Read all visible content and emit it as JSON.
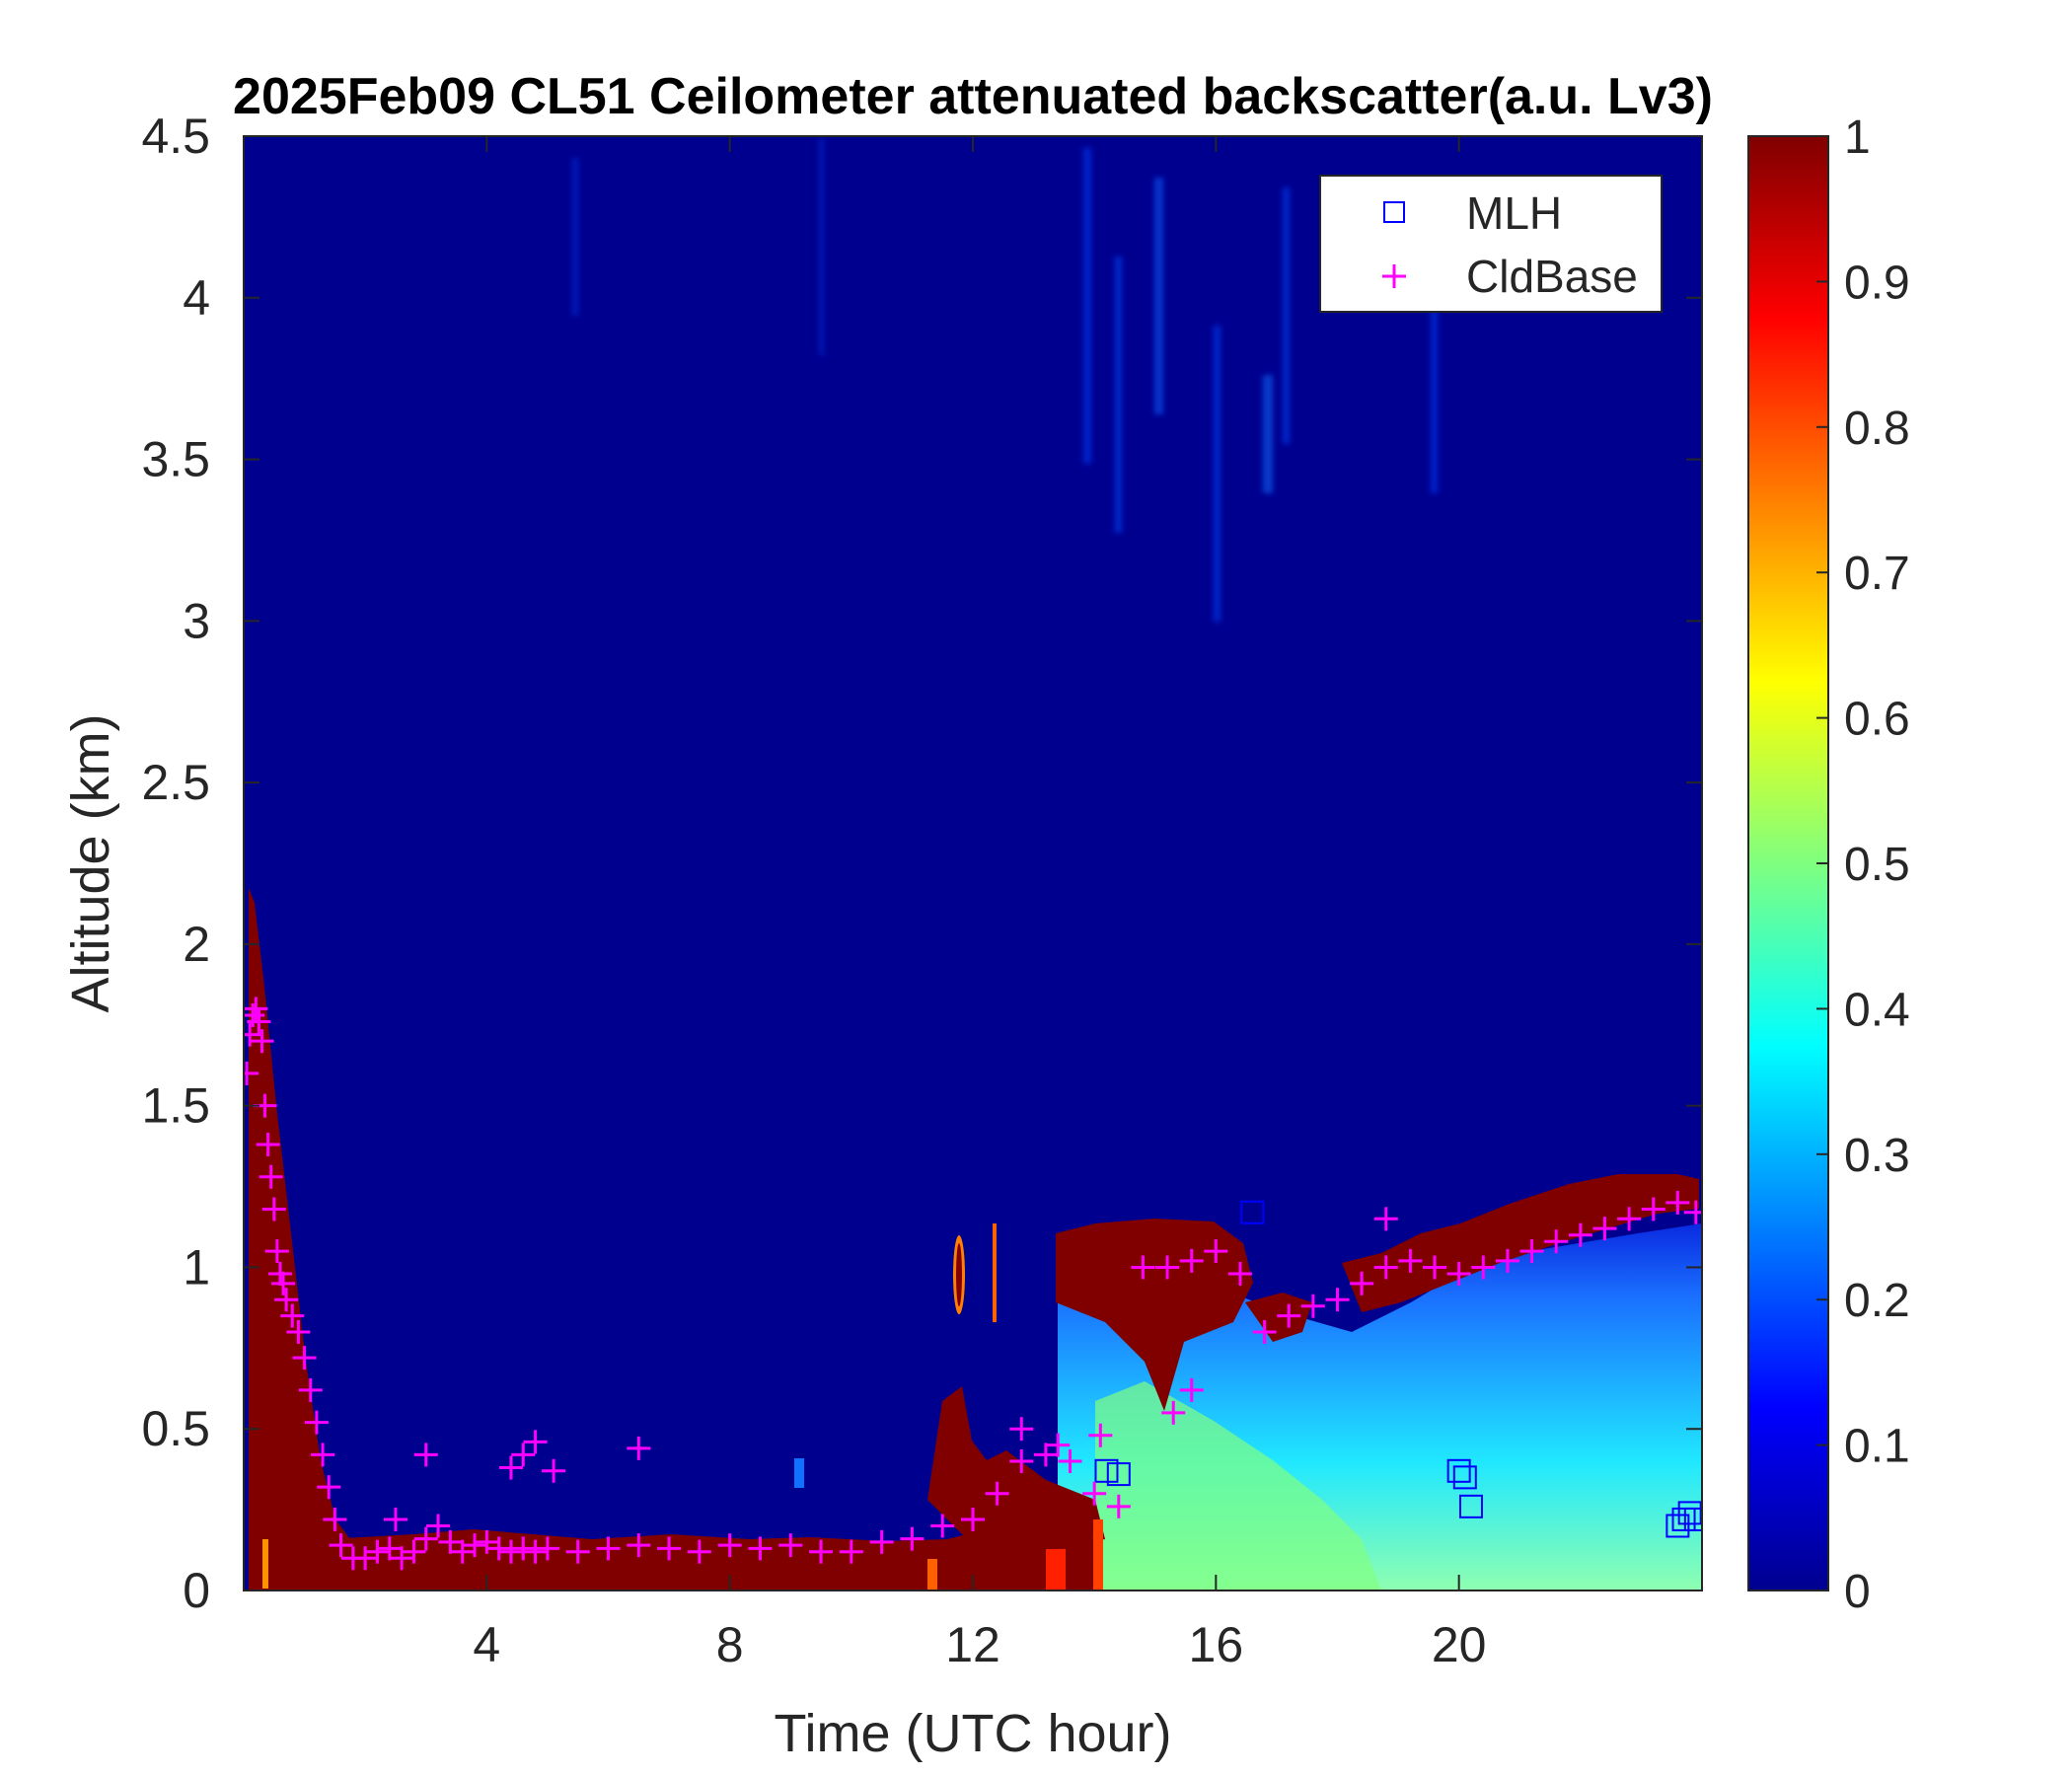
{
  "chart_data": {
    "type": "heatmap",
    "title": "2025Feb09 CL51 Ceilometer attenuated backscatter(a.u. Lv3)",
    "xlabel": "Time (UTC hour)",
    "ylabel": "Altitude (km)",
    "xlim": [
      0,
      24
    ],
    "ylim": [
      0,
      4.5
    ],
    "xticks": [
      4,
      8,
      12,
      16,
      20
    ],
    "yticks": [
      0,
      0.5,
      1,
      1.5,
      2,
      2.5,
      3,
      3.5,
      4,
      4.5
    ],
    "colormap": "jet",
    "colorbar": {
      "range": [
        0,
        1
      ],
      "ticks": [
        0,
        0.1,
        0.2,
        0.3,
        0.4,
        0.5,
        0.6,
        0.7,
        0.8,
        0.9,
        1
      ]
    },
    "legend": {
      "position": "top-right",
      "entries": [
        "MLH",
        "CldBase"
      ]
    },
    "series": [
      {
        "name": "MLH",
        "marker": "square",
        "color": "#0000ff",
        "x": [
          14.2,
          14.4,
          16.6,
          20.0,
          20.1,
          20.2,
          23.6,
          23.7,
          23.8,
          23.9
        ],
        "y": [
          0.37,
          0.36,
          1.17,
          0.37,
          0.35,
          0.26,
          0.2,
          0.22,
          0.24,
          0.22
        ]
      },
      {
        "name": "CldBase",
        "marker": "plus",
        "color": "#ff00ff",
        "x": [
          0.05,
          0.1,
          0.15,
          0.2,
          0.25,
          0.3,
          0.35,
          0.4,
          0.45,
          0.5,
          0.55,
          0.6,
          0.65,
          0.7,
          0.8,
          0.9,
          1.0,
          1.1,
          1.2,
          1.3,
          1.4,
          1.5,
          1.6,
          1.8,
          2.0,
          2.2,
          2.4,
          2.6,
          2.8,
          3.0,
          3.2,
          3.4,
          3.6,
          3.8,
          4.0,
          4.2,
          4.4,
          4.6,
          4.8,
          5.0,
          5.5,
          6.0,
          6.5,
          7.0,
          7.5,
          8.0,
          8.5,
          9.0,
          9.5,
          10.0,
          10.5,
          11.0,
          11.5,
          12.0,
          12.4,
          12.8,
          13.2,
          13.6,
          14.0,
          14.4,
          14.8,
          15.2,
          15.6,
          16.0,
          16.4,
          16.8,
          17.2,
          17.6,
          18.0,
          18.4,
          18.8,
          19.2,
          19.6,
          20.0,
          20.4,
          20.8,
          21.2,
          21.6,
          22.0,
          22.4,
          22.8,
          23.2,
          23.6,
          23.9,
          2.5,
          3.0,
          4.4,
          4.6,
          4.8,
          5.1,
          6.5,
          12.8,
          13.4,
          14.1,
          15.3,
          15.6,
          18.8
        ],
        "y": [
          1.6,
          1.72,
          1.78,
          1.8,
          1.76,
          1.7,
          1.5,
          1.38,
          1.28,
          1.18,
          1.05,
          0.98,
          0.95,
          0.9,
          0.85,
          0.8,
          0.72,
          0.62,
          0.52,
          0.42,
          0.32,
          0.22,
          0.14,
          0.1,
          0.1,
          0.12,
          0.13,
          0.1,
          0.12,
          0.16,
          0.2,
          0.15,
          0.12,
          0.14,
          0.15,
          0.13,
          0.12,
          0.13,
          0.12,
          0.13,
          0.12,
          0.13,
          0.14,
          0.13,
          0.12,
          0.14,
          0.13,
          0.14,
          0.12,
          0.12,
          0.15,
          0.16,
          0.2,
          0.22,
          0.3,
          0.4,
          0.42,
          0.4,
          0.3,
          0.26,
          1.0,
          1.0,
          1.02,
          1.05,
          0.98,
          0.8,
          0.85,
          0.88,
          0.9,
          0.95,
          1.0,
          1.02,
          1.0,
          0.98,
          1.0,
          1.02,
          1.05,
          1.08,
          1.1,
          1.12,
          1.15,
          1.18,
          1.2,
          1.17,
          0.22,
          0.42,
          0.38,
          0.42,
          0.46,
          0.37,
          0.44,
          0.5,
          0.45,
          0.48,
          0.55,
          0.62,
          1.15
        ]
      }
    ]
  }
}
